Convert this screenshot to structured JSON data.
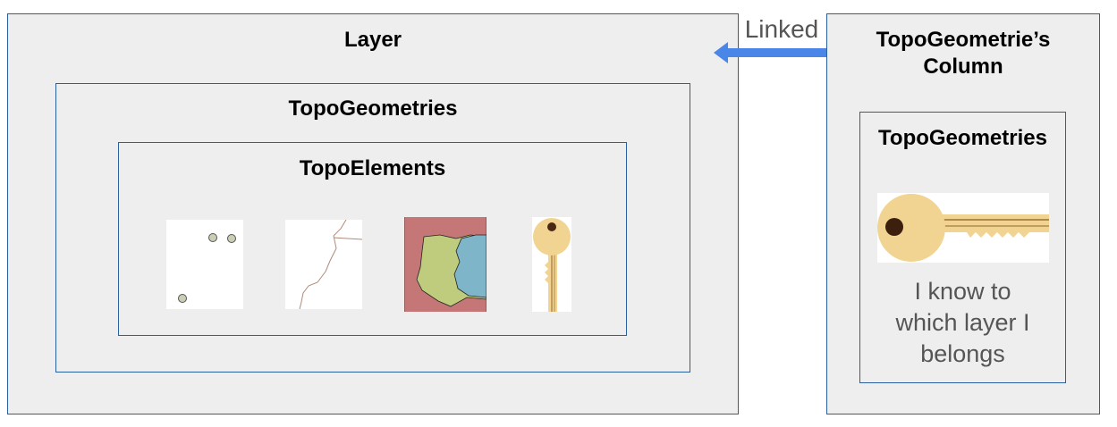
{
  "layer": {
    "title": "Layer"
  },
  "topogeometries": {
    "title": "TopoGeometries"
  },
  "topoelements": {
    "title": "TopoElements",
    "icons": [
      "points-icon",
      "lines-icon",
      "polygons-icon",
      "key-icon"
    ]
  },
  "link": {
    "label": "Linked"
  },
  "column": {
    "title_line1": "TopoGeometrie’s",
    "title_line2": "Column",
    "inner_title": "TopoGeometries",
    "text_line1": "I know to",
    "text_line2": "which layer I",
    "text_line3": "belongs"
  },
  "colors": {
    "border": "#2b5f9e",
    "box_fill": "#eeeeef",
    "arrow": "#4a86e8",
    "key": "#f2d492",
    "key_stripe": "#b08a4c",
    "poly_green": "#bfcc7e",
    "poly_blue": "#7fb5c9",
    "poly_red": "#c57777"
  }
}
